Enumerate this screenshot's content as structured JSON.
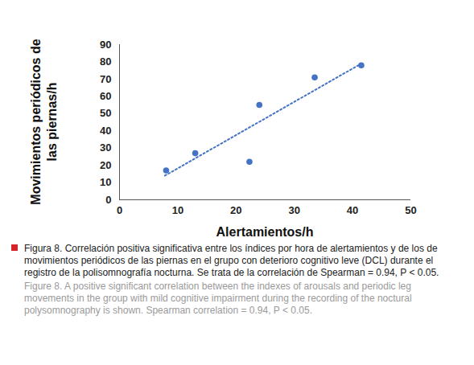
{
  "chart_data": {
    "type": "scatter",
    "x_label": "Alertamientos/h",
    "y_label": "Movimientos periódicos de\nlas piernas/h",
    "caption": [
      "Figura 8. Correlación positiva significativa entre los índices por hora de alertamientos y de los de movimientos periódicos de las piernas en el grupo con deterioro cognitivo leve (DCL) durante el registro de la polisomnografía nocturna. Se trata de la correlación de Spearman = 0.94, P < 0.05.",
      "Figure 8. A positive significant correlation between the indexes of arousals and periodic leg movements in the group with mild cognitive impairment during the recording of the noctural polysomnography is shown. Spearman correlation = 0.94, P < 0.05."
    ],
    "series": [
      {
        "type": "scatter",
        "color": "#4472c4",
        "marker": "circle",
        "x": [
          8,
          13,
          22.3,
          24,
          33.5,
          41.5
        ],
        "values": [
          17,
          27,
          22,
          55,
          71,
          78
        ]
      },
      {
        "type": "line",
        "color": "#4472c4",
        "line_style": "dotted",
        "x": [
          7.8,
          41.5
        ],
        "values": [
          14,
          79
        ]
      }
    ],
    "xlim": [
      0,
      50
    ],
    "xticks": [
      0,
      10,
      20,
      30,
      40,
      50
    ],
    "ylim": [
      0,
      90
    ],
    "yticks": [
      0,
      10,
      20,
      30,
      40,
      50,
      60,
      70,
      80,
      90
    ],
    "grid": false
  }
}
